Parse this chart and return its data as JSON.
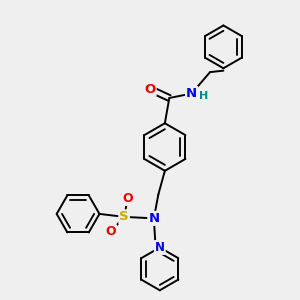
{
  "bg_color": "#efefef",
  "atom_colors": {
    "C": "#000000",
    "N": "#0000ee",
    "O": "#ee0000",
    "S": "#ccaa00",
    "H": "#008888"
  },
  "bond_color": "#000000",
  "bond_width": 1.4,
  "aromatic_inner_scale": 0.75,
  "font_size": 8.5
}
